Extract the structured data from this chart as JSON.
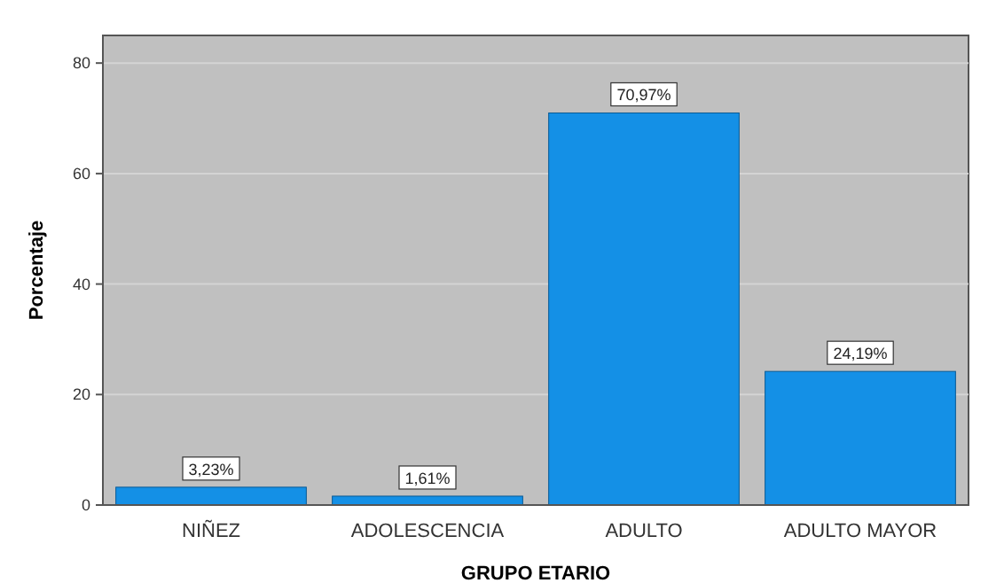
{
  "chart_data": {
    "type": "bar",
    "xlabel": "GRUPO ETARIO",
    "ylabel": "Porcentaje",
    "categories": [
      "NIÑEZ",
      "ADOLESCENCIA",
      "ADULTO",
      "ADULTO MAYOR"
    ],
    "values": [
      3.23,
      1.61,
      70.97,
      24.19
    ],
    "value_labels": [
      "3,23%",
      "1,61%",
      "70,97%",
      "24,19%"
    ],
    "color": "#1490e6",
    "ylim": [
      0,
      85
    ],
    "yticks": [
      0,
      20,
      40,
      60,
      80
    ],
    "grid": "y"
  }
}
